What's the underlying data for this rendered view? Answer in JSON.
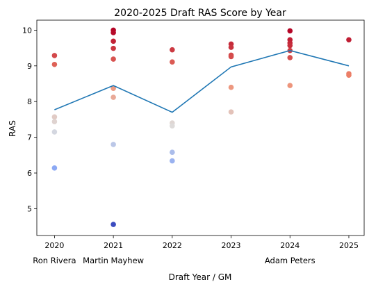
{
  "chart_data": {
    "type": "scatter",
    "title": "2020-2025 Draft RAS Score by Year",
    "xlabel": "Draft Year / GM",
    "ylabel": "RAS",
    "x": [
      2020,
      2021,
      2022,
      2023,
      2024,
      2025
    ],
    "xlim": [
      2019.7,
      2025.26
    ],
    "ylim": [
      4.25,
      10.28
    ],
    "yticks": [
      5,
      6,
      7,
      8,
      9,
      10
    ],
    "grid": false,
    "color_scale": "coolwarm (RAS low = blue, high = red)",
    "gm_labels": [
      {
        "x": 2020,
        "label": "Ron Rivera"
      },
      {
        "x": 2021,
        "label": "Martin Mayhew"
      },
      {
        "x": 2024,
        "label": "Adam Peters"
      }
    ],
    "series": [
      {
        "type": "scatter",
        "points": [
          {
            "x": 2020,
            "y": 9.29
          },
          {
            "x": 2020,
            "y": 9.04
          },
          {
            "x": 2020,
            "y": 7.57
          },
          {
            "x": 2020,
            "y": 7.44
          },
          {
            "x": 2020,
            "y": 7.15
          },
          {
            "x": 2020,
            "y": 6.14
          },
          {
            "x": 2021,
            "y": 10.0
          },
          {
            "x": 2021,
            "y": 9.93
          },
          {
            "x": 2021,
            "y": 9.69
          },
          {
            "x": 2021,
            "y": 9.49
          },
          {
            "x": 2021,
            "y": 9.19
          },
          {
            "x": 2021,
            "y": 8.37
          },
          {
            "x": 2021,
            "y": 8.12
          },
          {
            "x": 2021,
            "y": 6.8
          },
          {
            "x": 2021,
            "y": 4.56
          },
          {
            "x": 2022,
            "y": 9.45
          },
          {
            "x": 2022,
            "y": 9.11
          },
          {
            "x": 2022,
            "y": 7.4
          },
          {
            "x": 2022,
            "y": 7.32
          },
          {
            "x": 2022,
            "y": 6.58
          },
          {
            "x": 2022,
            "y": 6.34
          },
          {
            "x": 2023,
            "y": 9.61
          },
          {
            "x": 2023,
            "y": 9.52
          },
          {
            "x": 2023,
            "y": 9.3
          },
          {
            "x": 2023,
            "y": 9.26
          },
          {
            "x": 2023,
            "y": 8.4
          },
          {
            "x": 2023,
            "y": 7.71
          },
          {
            "x": 2024,
            "y": 9.98
          },
          {
            "x": 2024,
            "y": 9.73
          },
          {
            "x": 2024,
            "y": 9.64
          },
          {
            "x": 2024,
            "y": 9.57
          },
          {
            "x": 2024,
            "y": 9.43
          },
          {
            "x": 2024,
            "y": 9.23
          },
          {
            "x": 2024,
            "y": 8.45
          },
          {
            "x": 2025,
            "y": 9.73
          },
          {
            "x": 2025,
            "y": 8.78
          },
          {
            "x": 2025,
            "y": 8.74
          }
        ]
      },
      {
        "type": "line",
        "color": "#1f77b4",
        "x": [
          2020,
          2021,
          2022,
          2023,
          2024,
          2025
        ],
        "y": [
          7.77,
          8.45,
          7.7,
          8.97,
          9.43,
          9.0
        ]
      }
    ]
  }
}
